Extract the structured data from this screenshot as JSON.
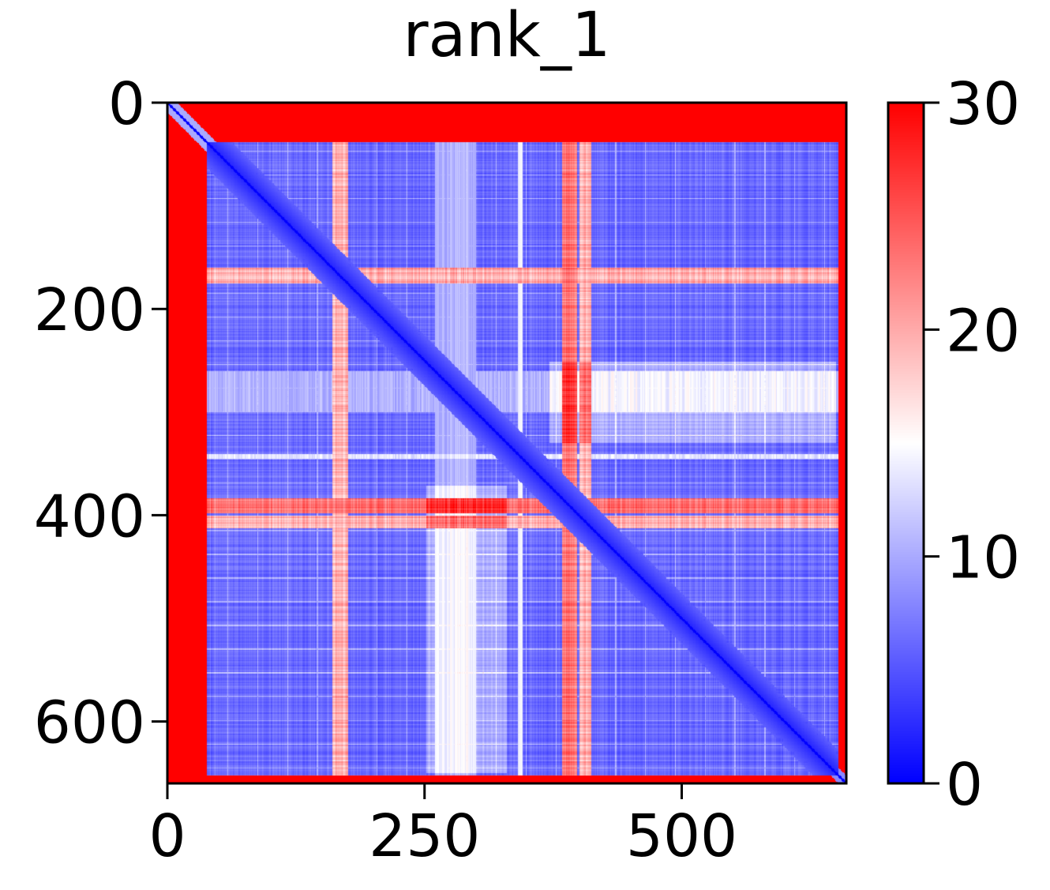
{
  "chart_data": {
    "type": "heatmap",
    "title": "rank_1",
    "xlabel": "",
    "ylabel": "",
    "matrix_size": 660,
    "xlim": [
      0,
      660
    ],
    "ylim": [
      660,
      0
    ],
    "x_ticks": [
      0,
      250,
      500
    ],
    "y_ticks": [
      0,
      200,
      400,
      600
    ],
    "colorbar": {
      "min": 0,
      "max": 30,
      "ticks": [
        0,
        10,
        20,
        30
      ],
      "colormap": "bwr",
      "low_color": "#0000ff",
      "mid_color": "#ffffff",
      "high_color": "#ff0000"
    },
    "description_values": {
      "diagonal": 0,
      "n_terminal_region": [
        0,
        38
      ],
      "n_terminal_value": 30,
      "c_terminal_region": [
        652,
        660
      ],
      "c_terminal_value": 30,
      "background_value": 4,
      "high_bands": [
        {
          "range": [
            160,
            175
          ],
          "value": 24
        },
        {
          "range": [
            383,
            398
          ],
          "value": 27
        },
        {
          "range": [
            400,
            412
          ],
          "value": 24
        }
      ],
      "light_bands": [
        {
          "range": [
            340,
            345
          ],
          "value": 12
        },
        {
          "range": [
            260,
            300
          ],
          "value": 9
        }
      ]
    }
  }
}
